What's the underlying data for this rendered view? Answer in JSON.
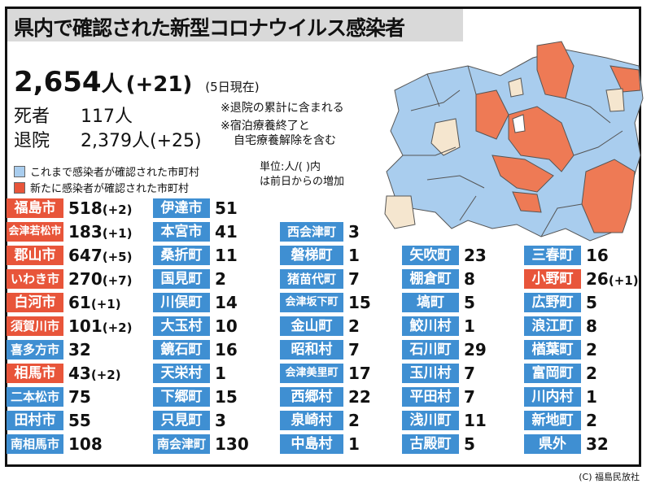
{
  "title": "県内で確認された新型コロナウイルス感染者",
  "total": {
    "count": "2,654",
    "unit": "人",
    "diff": "(+21)",
    "as_of": "(5日現在)"
  },
  "deaths": {
    "label": "死者",
    "value": "117人"
  },
  "recovered": {
    "label": "退院",
    "value": "2,379人(+25)"
  },
  "notes": [
    "※退院の累計に含まれる",
    "※宿泊療養終了と",
    "自宅療養解除を含む"
  ],
  "legend": {
    "old": {
      "label": "これまで感染者が確認された市町村",
      "color": "#a9cdee"
    },
    "new": {
      "label": "新たに感染者が確認された市町村",
      "color": "#e8553a"
    }
  },
  "unit_note": [
    "単位:人/(  )内",
    "は前日からの増加"
  ],
  "colors": {
    "tag_old": "#3f8fd2",
    "tag_new": "#e8553a",
    "map_none": "#f5e6cf",
    "map_old": "#a9cdee",
    "map_new": "#ee7a55"
  },
  "columns": [
    [
      {
        "name": "福島市",
        "count": "518",
        "diff": "(+2)",
        "new": true
      },
      {
        "name": "会津若松市",
        "count": "183",
        "diff": "(+1)",
        "new": true
      },
      {
        "name": "郡山市",
        "count": "647",
        "diff": "(+5)",
        "new": true
      },
      {
        "name": "いわき市",
        "count": "270",
        "diff": "(+7)",
        "new": true
      },
      {
        "name": "白河市",
        "count": "61",
        "diff": "(+1)",
        "new": true
      },
      {
        "name": "須賀川市",
        "count": "101",
        "diff": "(+2)",
        "new": true
      },
      {
        "name": "喜多方市",
        "count": "32",
        "diff": "",
        "new": false
      },
      {
        "name": "相馬市",
        "count": "43",
        "diff": "(+2)",
        "new": true
      },
      {
        "name": "二本松市",
        "count": "75",
        "diff": "",
        "new": false
      },
      {
        "name": "田村市",
        "count": "55",
        "diff": "",
        "new": false
      },
      {
        "name": "南相馬市",
        "count": "108",
        "diff": "",
        "new": false
      }
    ],
    [
      {
        "name": "伊達市",
        "count": "51",
        "diff": "",
        "new": false
      },
      {
        "name": "本宮市",
        "count": "41",
        "diff": "",
        "new": false
      },
      {
        "name": "桑折町",
        "count": "11",
        "diff": "",
        "new": false
      },
      {
        "name": "国見町",
        "count": "2",
        "diff": "",
        "new": false
      },
      {
        "name": "川俣町",
        "count": "14",
        "diff": "",
        "new": false
      },
      {
        "name": "大玉村",
        "count": "10",
        "diff": "",
        "new": false
      },
      {
        "name": "鏡石町",
        "count": "16",
        "diff": "",
        "new": false
      },
      {
        "name": "天栄村",
        "count": "1",
        "diff": "",
        "new": false
      },
      {
        "name": "下郷町",
        "count": "15",
        "diff": "",
        "new": false
      },
      {
        "name": "只見町",
        "count": "3",
        "diff": "",
        "new": false
      },
      {
        "name": "南会津町",
        "count": "130",
        "diff": "",
        "new": false
      }
    ],
    [
      {
        "name": "西会津町",
        "count": "3",
        "diff": "",
        "new": false
      },
      {
        "name": "磐梯町",
        "count": "1",
        "diff": "",
        "new": false
      },
      {
        "name": "猪苗代町",
        "count": "7",
        "diff": "",
        "new": false
      },
      {
        "name": "会津坂下町",
        "count": "15",
        "diff": "",
        "new": false
      },
      {
        "name": "金山町",
        "count": "2",
        "diff": "",
        "new": false
      },
      {
        "name": "昭和村",
        "count": "7",
        "diff": "",
        "new": false
      },
      {
        "name": "会津美里町",
        "count": "17",
        "diff": "",
        "new": false
      },
      {
        "name": "西郷村",
        "count": "22",
        "diff": "",
        "new": false
      },
      {
        "name": "泉崎村",
        "count": "2",
        "diff": "",
        "new": false
      },
      {
        "name": "中島村",
        "count": "1",
        "diff": "",
        "new": false
      }
    ],
    [
      {
        "name": "矢吹町",
        "count": "23",
        "diff": "",
        "new": false
      },
      {
        "name": "棚倉町",
        "count": "8",
        "diff": "",
        "new": false
      },
      {
        "name": "塙町",
        "count": "5",
        "diff": "",
        "new": false
      },
      {
        "name": "鮫川村",
        "count": "1",
        "diff": "",
        "new": false
      },
      {
        "name": "石川町",
        "count": "29",
        "diff": "",
        "new": false
      },
      {
        "name": "玉川村",
        "count": "7",
        "diff": "",
        "new": false
      },
      {
        "name": "平田村",
        "count": "7",
        "diff": "",
        "new": false
      },
      {
        "name": "浅川町",
        "count": "11",
        "diff": "",
        "new": false
      },
      {
        "name": "古殿町",
        "count": "5",
        "diff": "",
        "new": false
      }
    ],
    [
      {
        "name": "三春町",
        "count": "16",
        "diff": "",
        "new": false
      },
      {
        "name": "小野町",
        "count": "26",
        "diff": "(+1)",
        "new": true
      },
      {
        "name": "広野町",
        "count": "5",
        "diff": "",
        "new": false
      },
      {
        "name": "浪江町",
        "count": "8",
        "diff": "",
        "new": false
      },
      {
        "name": "楢葉町",
        "count": "2",
        "diff": "",
        "new": false
      },
      {
        "name": "富岡町",
        "count": "2",
        "diff": "",
        "new": false
      },
      {
        "name": "川内村",
        "count": "1",
        "diff": "",
        "new": false
      },
      {
        "name": "新地町",
        "count": "2",
        "diff": "",
        "new": false
      },
      {
        "name": "県外",
        "count": "32",
        "diff": "",
        "new": false
      }
    ]
  ],
  "copyright": "(C) 福島民放社"
}
